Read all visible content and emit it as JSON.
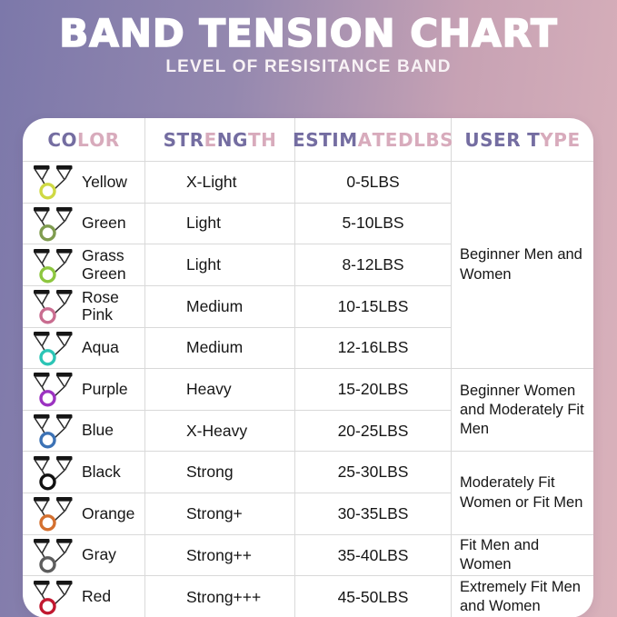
{
  "page": {
    "title": "BAND TENSION CHART",
    "subtitle": "LEVEL OF RESISITANCE BAND"
  },
  "theme": {
    "bg_gradient_left": "#7c78aa",
    "bg_gradient_right": "#dab2bb",
    "card_bg": "#ffffff",
    "header_purple": "#746da1",
    "header_pink": "#d8abbc",
    "row_text": "#161616",
    "divider": "#d9d9d9",
    "title_color": "#ffffff"
  },
  "table": {
    "headers": [
      {
        "name": "color",
        "label": "COLOR",
        "letter_tones": [
          "p",
          "p",
          "k",
          "k",
          "k"
        ]
      },
      {
        "name": "strength",
        "label": "STRENGTH",
        "letter_tones": [
          "p",
          "p",
          "p",
          "k",
          "p",
          "p",
          "k",
          "k"
        ]
      },
      {
        "name": "estimated-lbs",
        "label": "ESTIMATED LBS",
        "letter_tones": [
          "p",
          "p",
          "p",
          "p",
          "p",
          "k",
          "k",
          "k",
          "k",
          "-",
          "k",
          "k",
          "k"
        ]
      },
      {
        "name": "user-type",
        "label": "USER TYPE",
        "letter_tones": [
          "p",
          "p",
          "p",
          "p",
          "-",
          "p",
          "k",
          "k",
          "k"
        ]
      }
    ],
    "rows": [
      {
        "color_name": "Yellow",
        "band_hex": "#cfd944",
        "strength": "X-Light",
        "lbs": "0-5LBS"
      },
      {
        "color_name": "Green",
        "band_hex": "#7f9c4f",
        "strength": "Light",
        "lbs": "5-10LBS"
      },
      {
        "color_name": "Grass Green",
        "band_hex": "#8dc63f",
        "strength": "Light",
        "lbs": "8-12LBS"
      },
      {
        "color_name": "Rose Pink",
        "band_hex": "#c96d90",
        "strength": "Medium",
        "lbs": "10-15LBS"
      },
      {
        "color_name": "Aqua",
        "band_hex": "#2cc5b6",
        "strength": "Medium",
        "lbs": "12-16LBS"
      },
      {
        "color_name": "Purple",
        "band_hex": "#9c33c1",
        "strength": "Heavy",
        "lbs": "15-20LBS"
      },
      {
        "color_name": "Blue",
        "band_hex": "#3c72b5",
        "strength": "X-Heavy",
        "lbs": "20-25LBS"
      },
      {
        "color_name": "Black",
        "band_hex": "#111111",
        "strength": "Strong",
        "lbs": "25-30LBS"
      },
      {
        "color_name": "Orange",
        "band_hex": "#d4702f",
        "strength": "Strong+",
        "lbs": "30-35LBS"
      },
      {
        "color_name": "Gray",
        "band_hex": "#5d5d5d",
        "strength": "Strong++",
        "lbs": "35-40LBS"
      },
      {
        "color_name": "Red",
        "band_hex": "#c1182f",
        "strength": "Strong+++",
        "lbs": "45-50LBS"
      }
    ],
    "user_type_groups": [
      {
        "label": "Beginner Men and Women",
        "row_span": 5
      },
      {
        "label": "Beginner Women and Moderately Fit Men",
        "row_span": 2
      },
      {
        "label": "Moderately Fit Women or Fit Men",
        "row_span": 2
      },
      {
        "label": "Fit Men and Women",
        "row_span": 1
      },
      {
        "label": "Extremely Fit Men and Women",
        "row_span": 1
      }
    ]
  },
  "chart_data": {
    "type": "table",
    "title": "BAND TENSION CHART",
    "subtitle": "LEVEL OF RESISITANCE BAND",
    "columns": [
      "COLOR",
      "STRENGTH",
      "ESTIMATED LBS",
      "USER TYPE"
    ],
    "rows": [
      [
        "Yellow",
        "X-Light",
        "0-5LBS",
        "Beginner Men and Women"
      ],
      [
        "Green",
        "Light",
        "5-10LBS",
        "Beginner Men and Women"
      ],
      [
        "Grass Green",
        "Light",
        "8-12LBS",
        "Beginner Men and Women"
      ],
      [
        "Rose Pink",
        "Medium",
        "10-15LBS",
        "Beginner Men and Women"
      ],
      [
        "Aqua",
        "Medium",
        "12-16LBS",
        "Beginner Men and Women"
      ],
      [
        "Purple",
        "Heavy",
        "15-20LBS",
        "Beginner Women and Moderately Fit Men"
      ],
      [
        "Blue",
        "X-Heavy",
        "20-25LBS",
        "Beginner Women and Moderately Fit Men"
      ],
      [
        "Black",
        "Strong",
        "25-30LBS",
        "Moderately Fit Women or Fit Men"
      ],
      [
        "Orange",
        "Strong+",
        "30-35LBS",
        "Moderately Fit Women or Fit Men"
      ],
      [
        "Gray",
        "Strong++",
        "35-40LBS",
        "Fit Men and Women"
      ],
      [
        "Red",
        "Strong+++",
        "45-50LBS",
        "Extremely Fit Men and Women"
      ]
    ]
  }
}
